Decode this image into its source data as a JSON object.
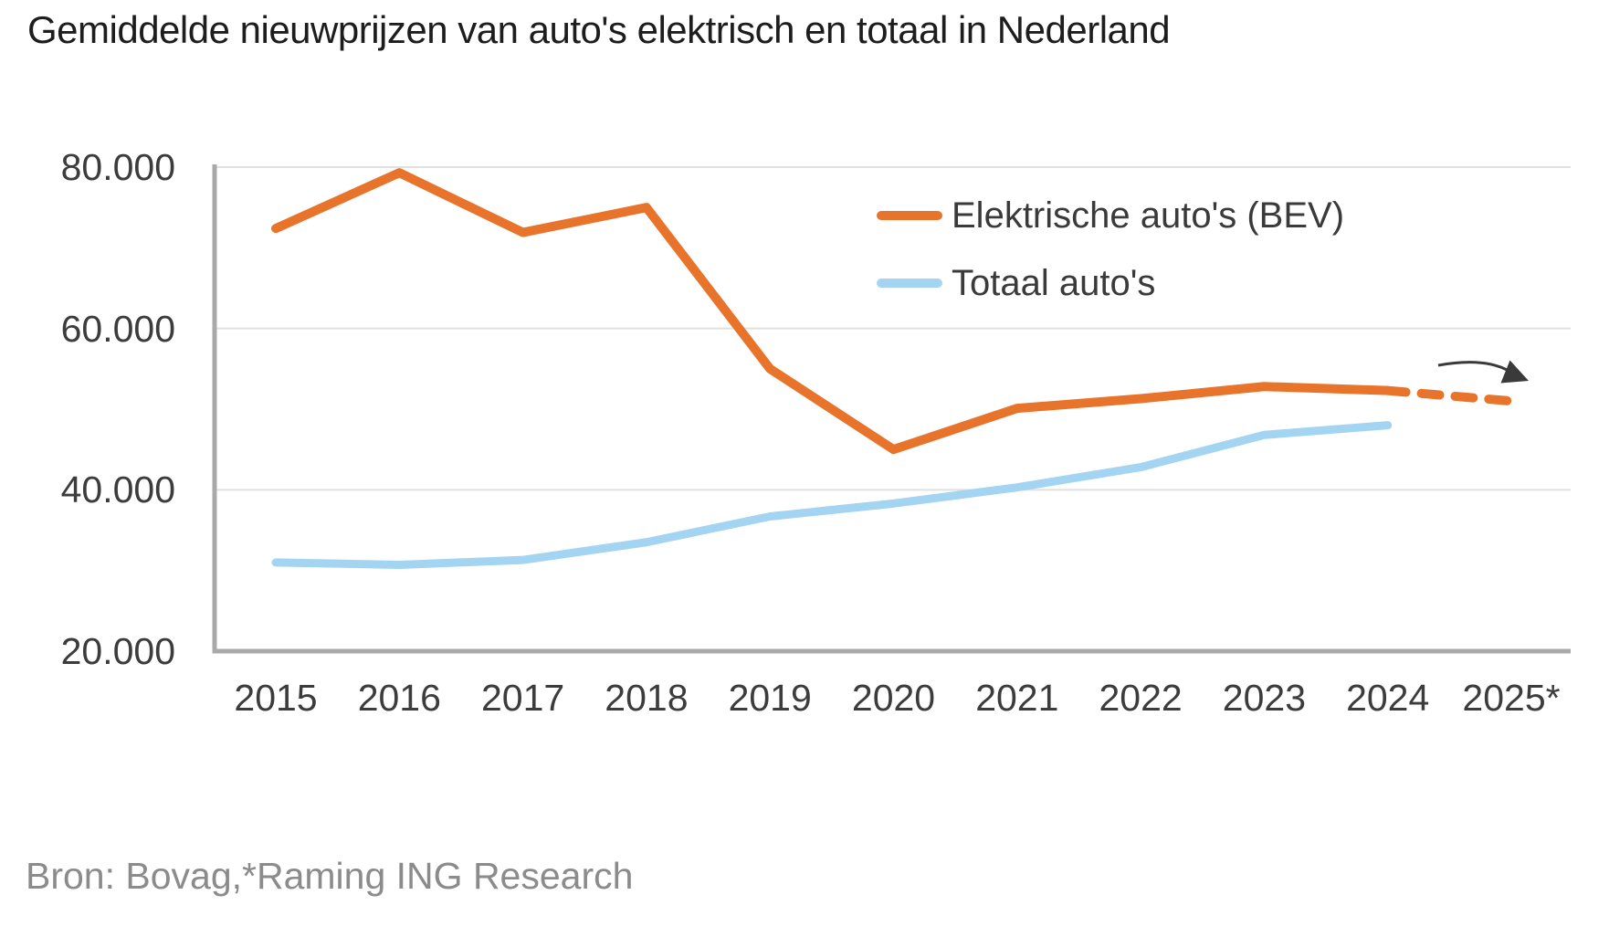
{
  "title": "Gemiddelde nieuwprijzen van auto's elektrisch en totaal in Nederland",
  "source": "Bron: Bovag,*Raming ING Research",
  "legend": {
    "items": [
      {
        "label": "Elektrische auto's (BEV)",
        "color": "#E8742C"
      },
      {
        "label": "Totaal auto's",
        "color": "#A3D5F2"
      }
    ]
  },
  "colors": {
    "bev_line": "#E8742C",
    "totaal_line": "#A3D5F2",
    "gridline": "#E1E1E1",
    "axis": "#A9A9A9",
    "annotation_arrow": "#3A3A3A",
    "tick_text": "#3C3C3C",
    "source_text": "#8B8B8B"
  },
  "chart_data": {
    "type": "line",
    "title": "Gemiddelde nieuwprijzen van auto's elektrisch en totaal in Nederland",
    "xlabel": "",
    "ylabel": "",
    "categories": [
      "2015",
      "2016",
      "2017",
      "2018",
      "2019",
      "2020",
      "2021",
      "2022",
      "2023",
      "2024",
      "2025*"
    ],
    "series": [
      {
        "name": "Elektrische auto's (BEV)",
        "color": "#E8742C",
        "values": [
          72400,
          79300,
          71900,
          75000,
          55000,
          45000,
          50100,
          51300,
          52800,
          52300,
          51000
        ],
        "dash_from_index": 9,
        "note": "2025* is raming (forecast), getoond met stippellijn"
      },
      {
        "name": "Totaal auto's",
        "color": "#A3D5F2",
        "values": [
          31000,
          30700,
          31300,
          33500,
          36700,
          38300,
          40300,
          42800,
          46800,
          48000,
          null
        ],
        "dash_from_index": null,
        "note": ""
      }
    ],
    "ylim": [
      20000,
      80000
    ],
    "yticks": [
      {
        "value": 20000,
        "label": "20.000"
      },
      {
        "value": 40000,
        "label": "40.000"
      },
      {
        "value": 60000,
        "label": "60.000"
      },
      {
        "value": 80000,
        "label": "80.000"
      }
    ],
    "grid": "horizontal",
    "legend_position": "top-right-inside",
    "annotations": [
      "curved arrow pointing to dashed 2025* forecast segment"
    ],
    "source": "Bron: Bovag,*Raming ING Research"
  }
}
